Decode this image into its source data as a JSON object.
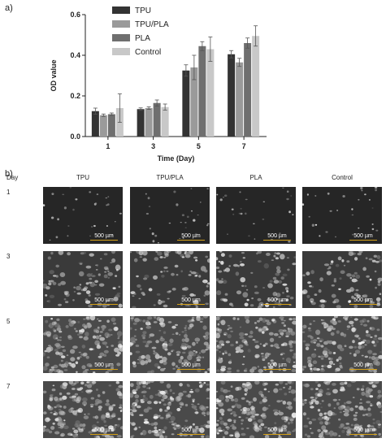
{
  "panel_a_label": "a)",
  "panel_b_label": "b)",
  "chart_data": {
    "type": "bar",
    "categories": [
      "1",
      "3",
      "5",
      "7"
    ],
    "xlabel": "Time (Day)",
    "ylabel": "OD value",
    "ylim": [
      0,
      0.6
    ],
    "yticks": [
      "0.0",
      "0.2",
      "0.4",
      "0.6"
    ],
    "legend_position": "top-left",
    "series": [
      {
        "name": "TPU",
        "color": "#333333",
        "values": [
          0.125,
          0.135,
          0.325,
          0.405
        ],
        "errors": [
          0.015,
          0.006,
          0.028,
          0.018
        ]
      },
      {
        "name": "TPU/PLA",
        "color": "#9a9a9a",
        "values": [
          0.105,
          0.14,
          0.34,
          0.365
        ],
        "errors": [
          0.006,
          0.006,
          0.06,
          0.02
        ]
      },
      {
        "name": "PLA",
        "color": "#6f6f6f",
        "values": [
          0.11,
          0.165,
          0.445,
          0.46
        ],
        "errors": [
          0.006,
          0.015,
          0.022,
          0.025
        ]
      },
      {
        "name": "Control",
        "color": "#c8c8c8",
        "values": [
          0.14,
          0.145,
          0.43,
          0.495
        ],
        "errors": [
          0.07,
          0.015,
          0.06,
          0.05
        ]
      }
    ]
  },
  "grid": {
    "day_header": "Day",
    "columns": [
      "TPU",
      "TPU/PLA",
      "PLA",
      "Control"
    ],
    "rows": [
      {
        "day": "1",
        "density": 0.08
      },
      {
        "day": "3",
        "density": 0.45
      },
      {
        "day": "5",
        "density": 0.85
      },
      {
        "day": "7",
        "density": 1.0
      }
    ],
    "scale_text": "500 µm",
    "scale_color": "#d4a017"
  }
}
